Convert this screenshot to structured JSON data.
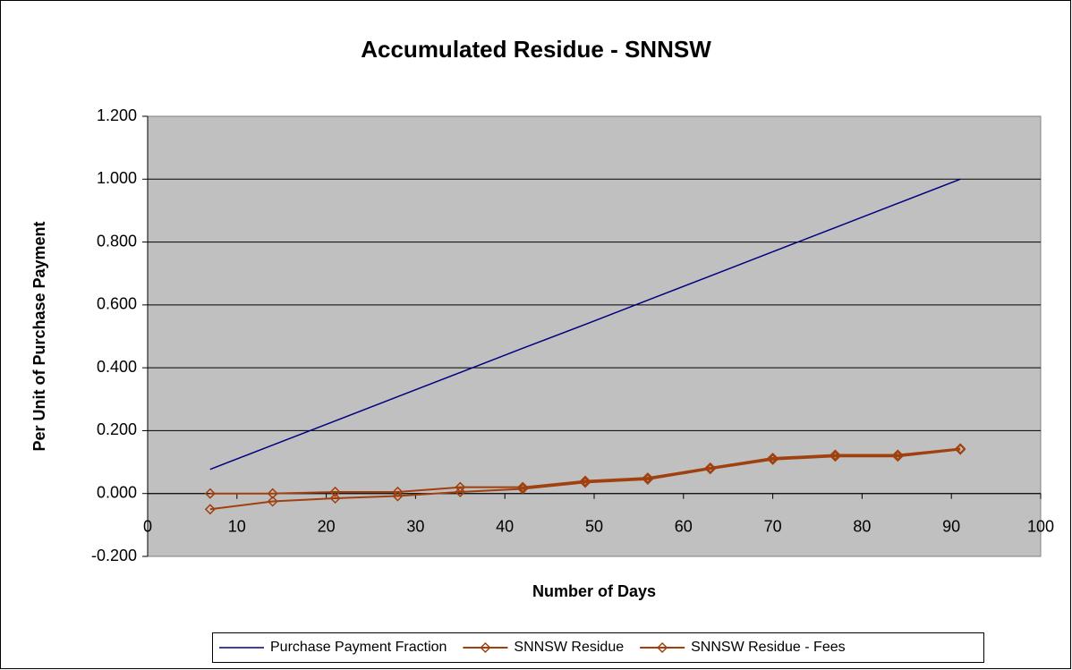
{
  "chart_data": {
    "type": "line",
    "title": "Accumulated Residue - SNNSW",
    "xlabel": "Number of Days",
    "ylabel": "Per Unit of Purchase Payment",
    "x": [
      7,
      14,
      21,
      28,
      35,
      42,
      49,
      56,
      63,
      70,
      77,
      84,
      91
    ],
    "series": [
      {
        "name": "Purchase Payment Fraction",
        "color": "#000080",
        "marker": null,
        "values": [
          0.077,
          0.154,
          0.231,
          0.308,
          0.385,
          0.462,
          0.538,
          0.615,
          0.692,
          0.769,
          0.846,
          0.923,
          1.0
        ]
      },
      {
        "name": "SNNSW Residue",
        "color": "#a0400f",
        "marker": "diamond",
        "values": [
          0.0,
          0.0,
          0.005,
          0.005,
          0.02,
          0.02,
          0.04,
          0.05,
          0.082,
          0.113,
          0.123,
          0.123,
          0.143
        ]
      },
      {
        "name": "SNNSW Residue - Fees",
        "color": "#a0400f",
        "marker": "diamond",
        "values": [
          -0.05,
          -0.025,
          -0.015,
          -0.008,
          0.005,
          0.015,
          0.035,
          0.045,
          0.078,
          0.108,
          0.118,
          0.118,
          0.14
        ]
      }
    ],
    "xlim": [
      0,
      100
    ],
    "xticks": [
      0,
      10,
      20,
      30,
      40,
      50,
      60,
      70,
      80,
      90,
      100
    ],
    "ylim": [
      -0.2,
      1.2
    ],
    "yticks": [
      {
        "value": -0.2,
        "label": "-0.200"
      },
      {
        "value": 0,
        "label": "0.000"
      },
      {
        "value": 0.2,
        "label": "0.200"
      },
      {
        "value": 0.4,
        "label": "0.400"
      },
      {
        "value": 0.6,
        "label": "0.600"
      },
      {
        "value": 0.8,
        "label": "0.800"
      },
      {
        "value": 1.0,
        "label": "1.000"
      },
      {
        "value": 1.2,
        "label": "1.200"
      }
    ],
    "grid": true,
    "legend": "bottom"
  }
}
